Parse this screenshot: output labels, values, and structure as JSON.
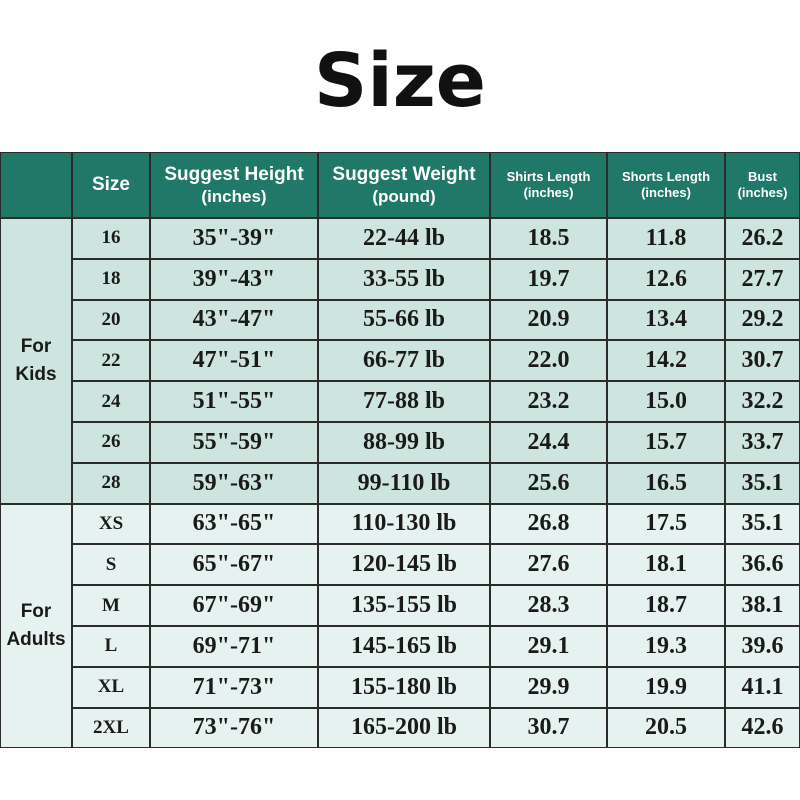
{
  "title": "Size",
  "table": {
    "header": [
      [
        "Size"
      ],
      [
        "Suggest Height",
        "(inches)"
      ],
      [
        "Suggest Weight",
        "(pound)"
      ],
      [
        "Shirts Length",
        "(inches)"
      ],
      [
        "Shorts Length",
        "(inches)"
      ],
      [
        "Bust",
        "(inches)"
      ]
    ],
    "groups": [
      {
        "label": [
          "For",
          "Kids"
        ],
        "rows": [
          [
            "16",
            "35\"-39\"",
            "22-44 lb",
            "18.5",
            "11.8",
            "26.2"
          ],
          [
            "18",
            "39\"-43\"",
            "33-55 lb",
            "19.7",
            "12.6",
            "27.7"
          ],
          [
            "20",
            "43\"-47\"",
            "55-66 lb",
            "20.9",
            "13.4",
            "29.2"
          ],
          [
            "22",
            "47\"-51\"",
            "66-77 lb",
            "22.0",
            "14.2",
            "30.7"
          ],
          [
            "24",
            "51\"-55\"",
            "77-88 lb",
            "23.2",
            "15.0",
            "32.2"
          ],
          [
            "26",
            "55\"-59\"",
            "88-99 lb",
            "24.4",
            "15.7",
            "33.7"
          ],
          [
            "28",
            "59\"-63\"",
            "99-110 lb",
            "25.6",
            "16.5",
            "35.1"
          ]
        ]
      },
      {
        "label": [
          "For",
          "Adults"
        ],
        "rows": [
          [
            "XS",
            "63\"-65\"",
            "110-130 lb",
            "26.8",
            "17.5",
            "35.1"
          ],
          [
            "S",
            "65\"-67\"",
            "120-145 lb",
            "27.6",
            "18.1",
            "36.6"
          ],
          [
            "M",
            "67\"-69\"",
            "135-155 lb",
            "28.3",
            "18.7",
            "38.1"
          ],
          [
            "L",
            "69\"-71\"",
            "145-165 lb",
            "29.1",
            "19.3",
            "39.6"
          ],
          [
            "XL",
            "71\"-73\"",
            "155-180 lb",
            "29.9",
            "19.9",
            "41.1"
          ],
          [
            "2XL",
            "73\"-76\"",
            "165-200 lb",
            "30.7",
            "20.5",
            "42.6"
          ]
        ]
      }
    ]
  }
}
